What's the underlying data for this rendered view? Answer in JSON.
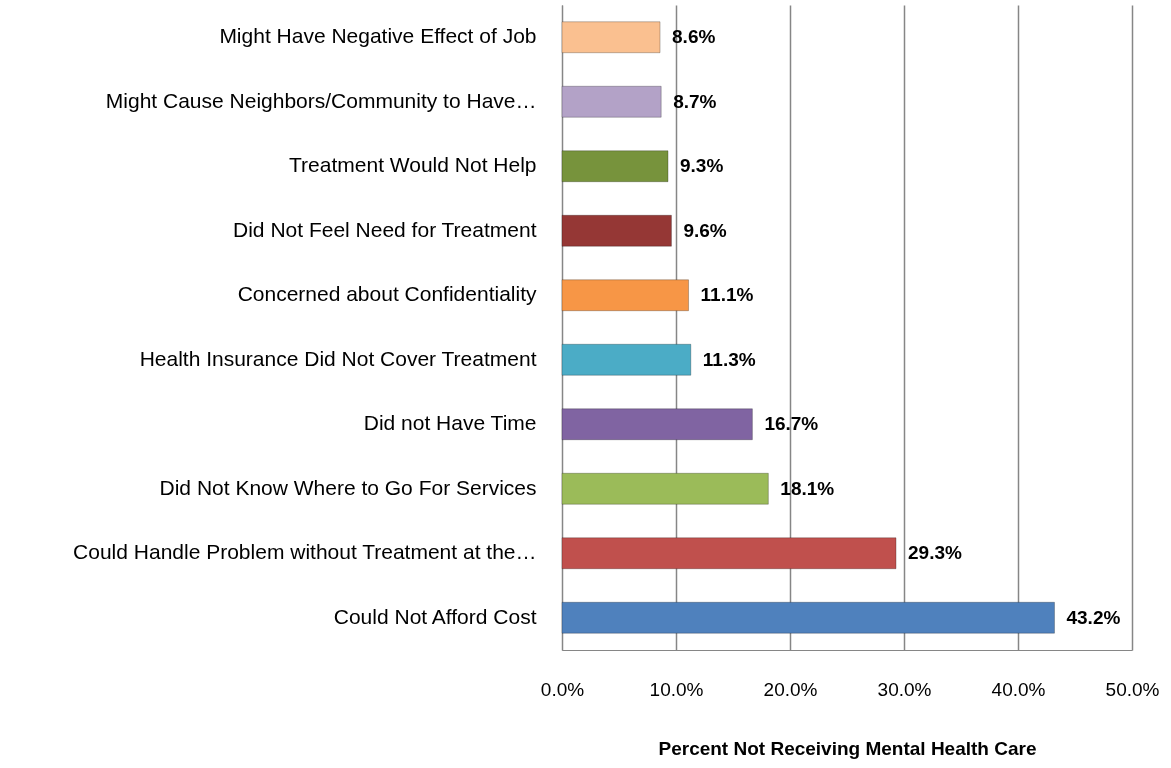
{
  "chart_data": {
    "type": "bar",
    "orientation": "horizontal",
    "xlabel": "Percent Not Receiving Mental Health Care",
    "categories": [
      "Might Have Negative Effect of Job",
      "Might Cause Neighbors/Community to Have…",
      "Treatment Would Not Help",
      "Did Not Feel Need for Treatment",
      "Concerned about Confidentiality",
      "Health Insurance Did Not Cover Treatment",
      "Did not Have Time",
      "Did Not Know Where to Go For Services",
      "Could Handle Problem without Treatment at the…",
      "Could Not Afford Cost"
    ],
    "values": [
      8.6,
      8.7,
      9.3,
      9.6,
      11.1,
      11.3,
      16.7,
      18.1,
      29.3,
      43.2
    ],
    "value_labels": [
      "8.6%",
      "8.7%",
      "9.3%",
      "9.6%",
      "11.1%",
      "11.3%",
      "16.7%",
      "18.1%",
      "29.3%",
      "43.2%"
    ],
    "colors": [
      "#fac090",
      "#b3a2c7",
      "#77933c",
      "#953735",
      "#f79646",
      "#4bacc6",
      "#8064a2",
      "#9bbb59",
      "#c0504d",
      "#4f81bd"
    ],
    "xlim": [
      0,
      50
    ],
    "xticks": [
      {
        "value": 0,
        "label": "0.0%"
      },
      {
        "value": 10,
        "label": "10.0%"
      },
      {
        "value": 20,
        "label": "20.0%"
      },
      {
        "value": 30,
        "label": "30.0%"
      },
      {
        "value": 40,
        "label": "40.0%"
      },
      {
        "value": 50,
        "label": "50.0%"
      }
    ],
    "grid": "x"
  }
}
